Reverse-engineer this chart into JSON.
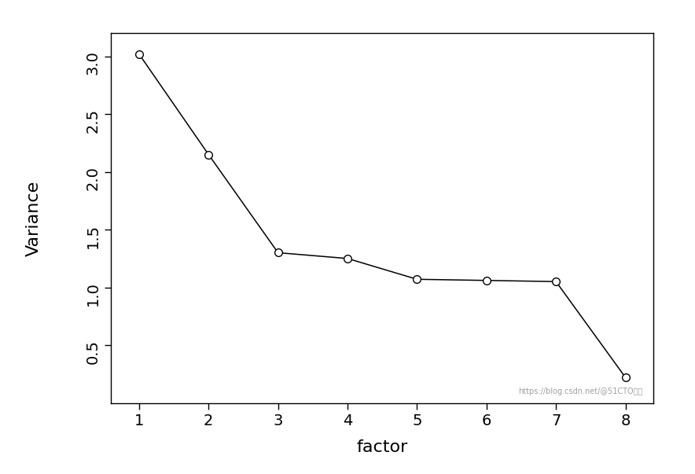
{
  "x": [
    1,
    2,
    3,
    4,
    5,
    6,
    7,
    8
  ],
  "y": [
    3.02,
    2.15,
    1.3,
    1.25,
    1.07,
    1.06,
    1.05,
    0.22
  ],
  "xlabel": "factor",
  "ylabel": "Variance",
  "xlim": [
    0.6,
    8.4
  ],
  "ylim": [
    0.0,
    3.2
  ],
  "yticks": [
    0.5,
    1.0,
    1.5,
    2.0,
    2.5,
    3.0
  ],
  "xticks": [
    1,
    2,
    3,
    4,
    5,
    6,
    7,
    8
  ],
  "line_color": "#000000",
  "marker_facecolor": "#ffffff",
  "marker_edgecolor": "#000000",
  "marker_size": 7,
  "line_width": 1.1,
  "background_color": "#ffffff",
  "watermark": "https://blog.csdn.net/@51CTO博客",
  "tick_label_fontsize": 14,
  "axis_label_fontsize": 16
}
